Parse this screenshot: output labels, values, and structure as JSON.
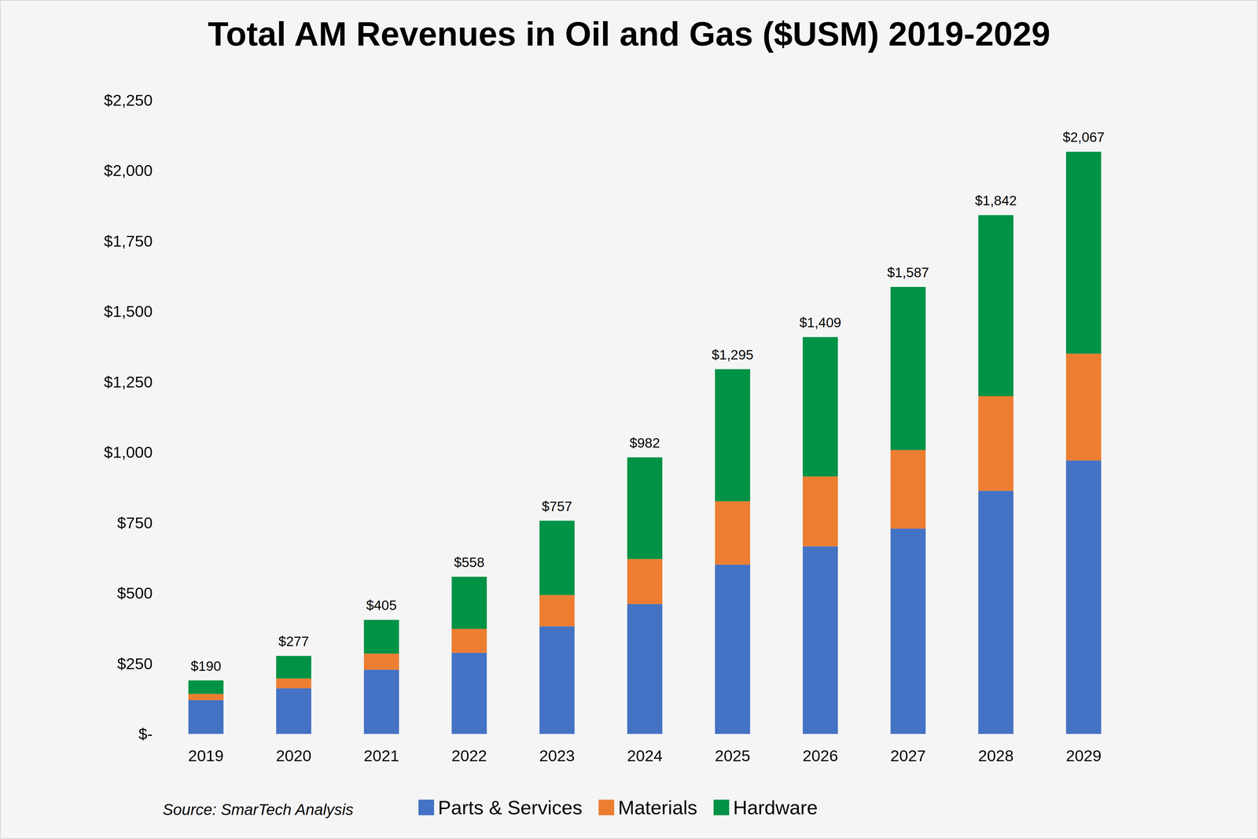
{
  "chart_data": {
    "type": "bar",
    "title": "Total AM Revenues in Oil and Gas ($USM) 2019-2029",
    "source": "Source: SmarTech Analysis",
    "stacked": true,
    "legend": "bottom",
    "categories": [
      "2019",
      "2020",
      "2021",
      "2022",
      "2023",
      "2024",
      "2025",
      "2026",
      "2027",
      "2028",
      "2029"
    ],
    "series": [
      {
        "name": "Parts & Services",
        "color": "#4472c4",
        "values": [
          120,
          162,
          228,
          288,
          382,
          461,
          601,
          666,
          729,
          863,
          971
        ]
      },
      {
        "name": "Materials",
        "color": "#ed7d31",
        "values": [
          22,
          35,
          57,
          85,
          111,
          160,
          225,
          248,
          279,
          336,
          379
        ]
      },
      {
        "name": "Hardware",
        "color": "#009245",
        "values": [
          48,
          80,
          120,
          185,
          264,
          361,
          469,
          495,
          579,
          643,
          717
        ]
      }
    ],
    "totals": [
      190,
      277,
      405,
      558,
      757,
      982,
      1295,
      1409,
      1587,
      1842,
      2067
    ],
    "total_labels": [
      "$190",
      "$277",
      "$405",
      "$558",
      "$757",
      "$982",
      "$1,295",
      "$1,409",
      "$1,587",
      "$1,842",
      "$2,067"
    ],
    "ylim": [
      0,
      2250
    ],
    "yticks": [
      {
        "value": 0,
        "label": "$-"
      },
      {
        "value": 250,
        "label": "$250"
      },
      {
        "value": 500,
        "label": "$500"
      },
      {
        "value": 750,
        "label": "$750"
      },
      {
        "value": 1000,
        "label": "$1,000"
      },
      {
        "value": 1250,
        "label": "$1,250"
      },
      {
        "value": 1500,
        "label": "$1,500"
      },
      {
        "value": 1750,
        "label": "$1,750"
      },
      {
        "value": 2000,
        "label": "$2,000"
      },
      {
        "value": 2250,
        "label": "$2,250"
      }
    ]
  }
}
